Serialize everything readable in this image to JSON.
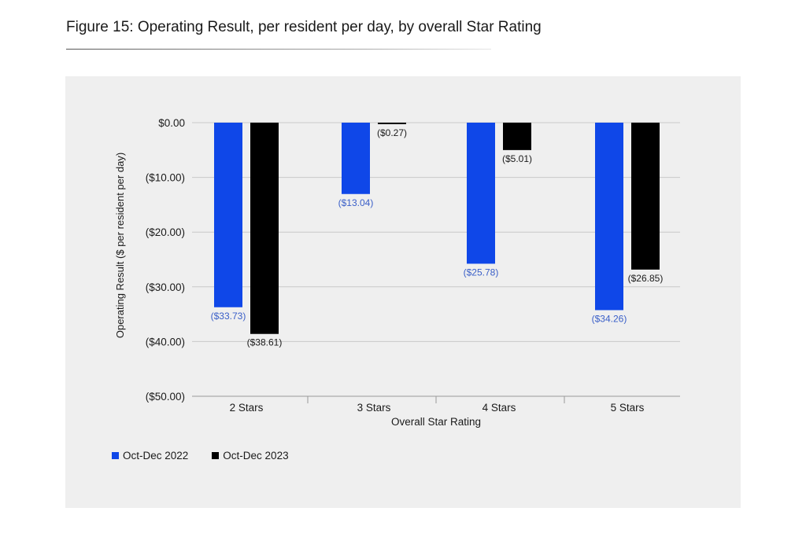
{
  "figure": {
    "title": "Figure 15: Operating Result, per resident per day, by overall Star Rating"
  },
  "chart_data": {
    "type": "bar",
    "title": "",
    "xlabel": "Overall Star Rating",
    "ylabel": "Operating Result ($ per resident per day)",
    "categories": [
      "2 Stars",
      "3 Stars",
      "4 Stars",
      "5 Stars"
    ],
    "ylim": [
      -50,
      0
    ],
    "yticks": [
      0,
      -10,
      -20,
      -30,
      -40,
      -50
    ],
    "ytick_labels": [
      "$0.00",
      "($10.00)",
      "($20.00)",
      "($30.00)",
      "($40.00)",
      "($50.00)"
    ],
    "grid": true,
    "legend_position": "bottom-left",
    "series": [
      {
        "name": "Oct-Dec 2022",
        "color": "#0f47e8",
        "label_color": "#3a5fc8",
        "values": [
          -33.73,
          -13.04,
          -25.78,
          -34.26
        ],
        "labels": [
          "($33.73)",
          "($13.04)",
          "($25.78)",
          "($34.26)"
        ]
      },
      {
        "name": "Oct-Dec 2023",
        "color": "#000000",
        "label_color": "#1a1a1a",
        "values": [
          -38.61,
          -0.27,
          -5.01,
          -26.85
        ],
        "labels": [
          "($38.61)",
          "($0.27)",
          "($5.01)",
          "($26.85)"
        ]
      }
    ]
  }
}
